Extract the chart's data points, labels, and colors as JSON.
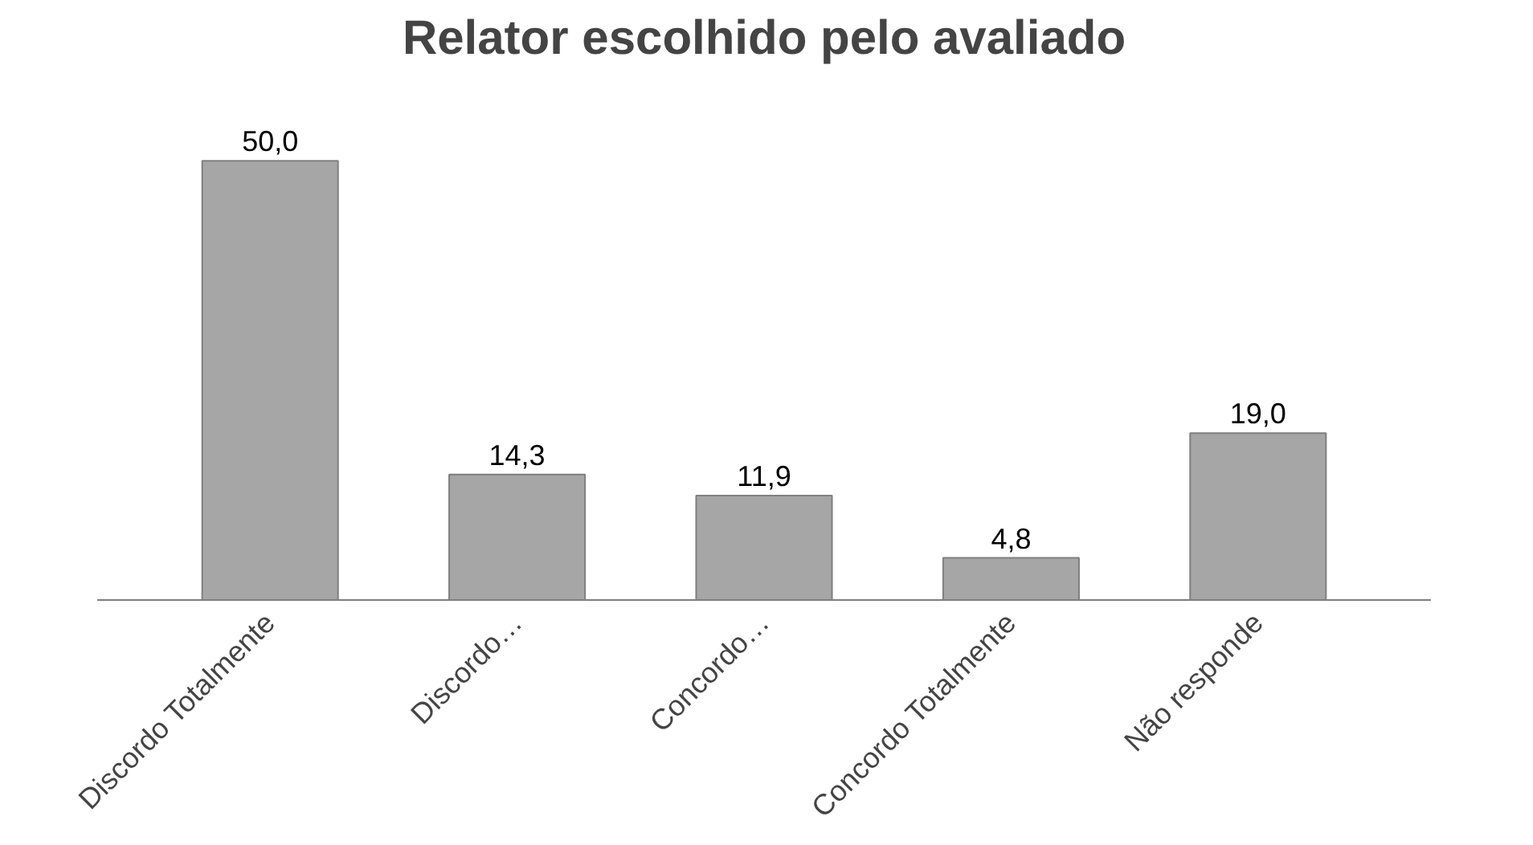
{
  "chart_data": {
    "type": "bar",
    "title": "Relator escolhido pelo avaliado",
    "categories": [
      "Discordo Totalmente",
      "Discordo…",
      "Concordo…",
      "Concordo Totalmente",
      "Não responde"
    ],
    "values": [
      50.0,
      14.3,
      11.9,
      4.8,
      19.0
    ],
    "value_labels": [
      "50,0",
      "14,3",
      "11,9",
      "4,8",
      "19,0"
    ],
    "color": "#a6a6a6"
  }
}
